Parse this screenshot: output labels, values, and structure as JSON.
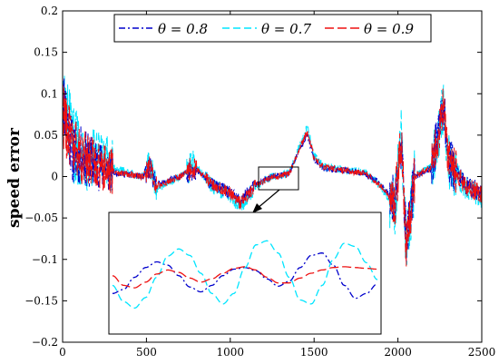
{
  "chart_data": {
    "type": "line",
    "title": "",
    "xlabel": "",
    "ylabel": "speed error",
    "xlim": [
      0,
      2500
    ],
    "ylim": [
      -0.2,
      0.2
    ],
    "xticks": [
      "0",
      "500",
      "1000",
      "1500",
      "2000",
      "2500"
    ],
    "yticks": [
      "0.2",
      "0.15",
      "0.1",
      "0.05",
      "0",
      "−0.05",
      "−0.1",
      "−0.15",
      "−0.2"
    ],
    "grid": false,
    "legend_position": "top",
    "series": [
      {
        "name": "θ = 0.8",
        "color": "#0000cc",
        "dash": "dash-dot",
        "points": [
          [
            0,
            0.1
          ],
          [
            60,
            0.03
          ],
          [
            150,
            0.02
          ],
          [
            300,
            0.005
          ],
          [
            480,
            0.0
          ],
          [
            520,
            0.01
          ],
          [
            560,
            -0.01
          ],
          [
            700,
            0.0
          ],
          [
            780,
            0.01
          ],
          [
            900,
            -0.01
          ],
          [
            1000,
            -0.02
          ],
          [
            1060,
            -0.03
          ],
          [
            1150,
            -0.01
          ],
          [
            1250,
            0.0
          ],
          [
            1350,
            0.003
          ],
          [
            1430,
            0.04
          ],
          [
            1460,
            0.05
          ],
          [
            1500,
            0.02
          ],
          [
            1560,
            0.01
          ],
          [
            1700,
            0.007
          ],
          [
            1800,
            0.004
          ],
          [
            1900,
            -0.01
          ],
          [
            1980,
            -0.03
          ],
          [
            2020,
            0.04
          ],
          [
            2050,
            -0.08
          ],
          [
            2100,
            0.0
          ],
          [
            2200,
            0.01
          ],
          [
            2270,
            0.09
          ],
          [
            2300,
            0.02
          ],
          [
            2400,
            -0.01
          ],
          [
            2500,
            -0.02
          ]
        ]
      },
      {
        "name": "θ = 0.7",
        "color": "#00e5ff",
        "dash": "dashed",
        "points": [
          [
            0,
            0.09
          ],
          [
            60,
            0.04
          ],
          [
            150,
            0.025
          ],
          [
            300,
            0.01
          ],
          [
            480,
            0.0
          ],
          [
            520,
            0.015
          ],
          [
            560,
            -0.015
          ],
          [
            700,
            0.0
          ],
          [
            780,
            0.015
          ],
          [
            900,
            -0.012
          ],
          [
            1000,
            -0.022
          ],
          [
            1060,
            -0.035
          ],
          [
            1150,
            -0.012
          ],
          [
            1250,
            0.0
          ],
          [
            1350,
            0.004
          ],
          [
            1430,
            0.045
          ],
          [
            1460,
            0.06
          ],
          [
            1500,
            0.025
          ],
          [
            1560,
            0.012
          ],
          [
            1700,
            0.008
          ],
          [
            1800,
            0.005
          ],
          [
            1900,
            -0.012
          ],
          [
            1980,
            -0.04
          ],
          [
            2020,
            0.05
          ],
          [
            2050,
            -0.09
          ],
          [
            2100,
            0.0
          ],
          [
            2200,
            0.012
          ],
          [
            2270,
            0.08
          ],
          [
            2300,
            0.02
          ],
          [
            2400,
            -0.012
          ],
          [
            2500,
            -0.025
          ]
        ]
      },
      {
        "name": "θ = 0.9",
        "color": "#ee1111",
        "dash": "long-dash",
        "points": [
          [
            0,
            0.08
          ],
          [
            60,
            0.035
          ],
          [
            150,
            0.02
          ],
          [
            300,
            0.006
          ],
          [
            480,
            0.0
          ],
          [
            520,
            0.012
          ],
          [
            560,
            -0.012
          ],
          [
            700,
            0.0
          ],
          [
            780,
            0.012
          ],
          [
            900,
            -0.011
          ],
          [
            1000,
            -0.02
          ],
          [
            1060,
            -0.032
          ],
          [
            1150,
            -0.011
          ],
          [
            1250,
            0.0
          ],
          [
            1350,
            0.003
          ],
          [
            1430,
            0.042
          ],
          [
            1460,
            0.055
          ],
          [
            1500,
            0.022
          ],
          [
            1560,
            0.011
          ],
          [
            1700,
            0.007
          ],
          [
            1800,
            0.004
          ],
          [
            1900,
            -0.011
          ],
          [
            1980,
            -0.035
          ],
          [
            2020,
            0.045
          ],
          [
            2050,
            -0.085
          ],
          [
            2100,
            0.0
          ],
          [
            2200,
            0.011
          ],
          [
            2270,
            0.085
          ],
          [
            2300,
            0.018
          ],
          [
            2400,
            -0.011
          ],
          [
            2500,
            -0.022
          ]
        ]
      }
    ],
    "inset": {
      "source_xrange": [
        1170,
        1400
      ],
      "source_yrange": [
        -0.01,
        0.01
      ],
      "series": [
        {
          "name": "θ = 0.8",
          "values": [
            -0.15,
            -0.145,
            -0.13,
            -0.118,
            -0.111,
            -0.115,
            -0.128,
            -0.142,
            -0.148,
            -0.14,
            -0.128,
            -0.12,
            -0.118,
            -0.122,
            -0.132,
            -0.141,
            -0.135,
            -0.118,
            -0.103,
            -0.1,
            -0.115,
            -0.14,
            -0.156,
            -0.15,
            -0.138
          ]
        },
        {
          "name": "θ = 0.7",
          "values": [
            -0.14,
            -0.16,
            -0.168,
            -0.155,
            -0.13,
            -0.104,
            -0.095,
            -0.103,
            -0.125,
            -0.15,
            -0.163,
            -0.15,
            -0.118,
            -0.09,
            -0.085,
            -0.1,
            -0.13,
            -0.158,
            -0.163,
            -0.14,
            -0.108,
            -0.088,
            -0.092,
            -0.112,
            -0.133
          ]
        },
        {
          "name": "θ = 0.9",
          "values": [
            -0.128,
            -0.14,
            -0.143,
            -0.136,
            -0.126,
            -0.121,
            -0.124,
            -0.131,
            -0.136,
            -0.132,
            -0.125,
            -0.119,
            -0.117,
            -0.121,
            -0.13,
            -0.137,
            -0.137,
            -0.131,
            -0.125,
            -0.121,
            -0.118,
            -0.117,
            -0.118,
            -0.119,
            -0.12
          ]
        }
      ]
    }
  }
}
